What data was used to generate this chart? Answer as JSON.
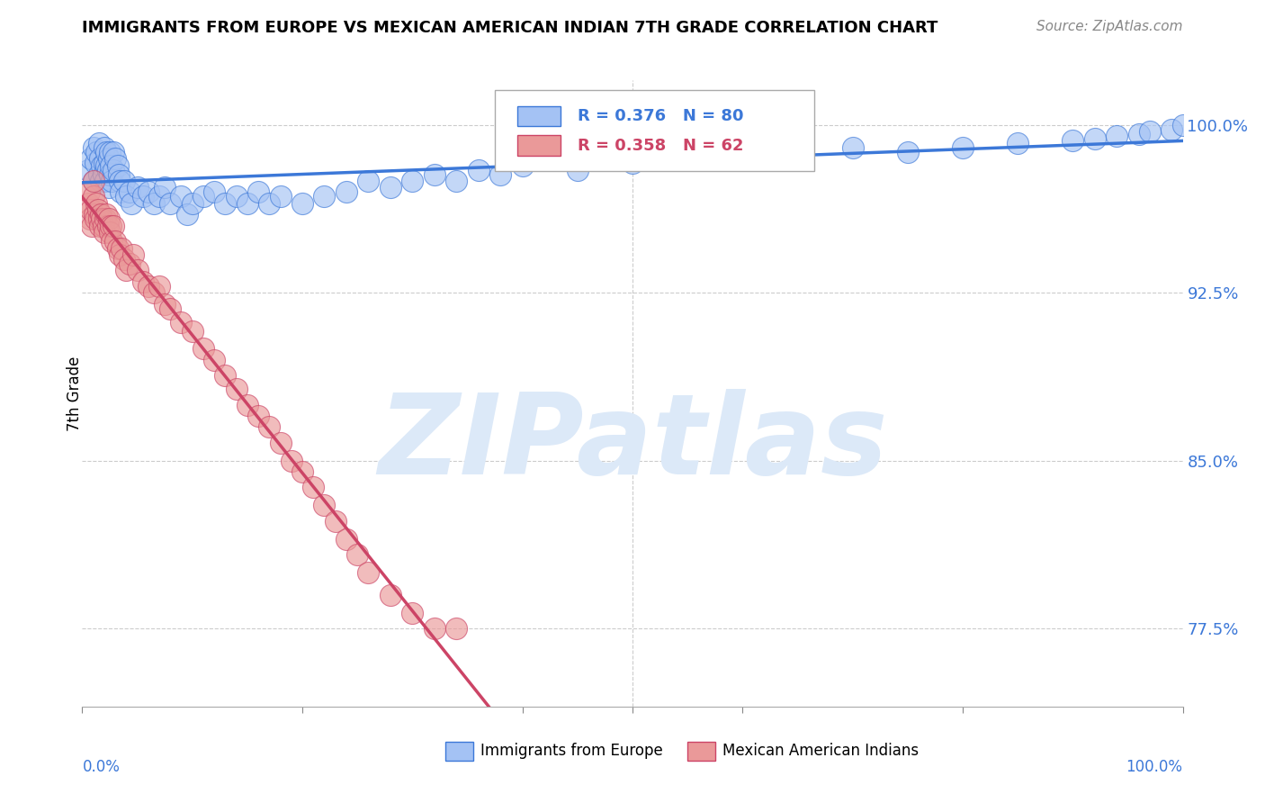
{
  "title": "IMMIGRANTS FROM EUROPE VS MEXICAN AMERICAN INDIAN 7TH GRADE CORRELATION CHART",
  "source": "Source: ZipAtlas.com",
  "ylabel": "7th Grade",
  "ytick_vals": [
    0.775,
    0.85,
    0.925,
    1.0
  ],
  "ytick_labels": [
    "77.5%",
    "85.0%",
    "92.5%",
    "100.0%"
  ],
  "xlim": [
    0.0,
    1.0
  ],
  "ylim": [
    0.74,
    1.02
  ],
  "legend_blue_label": "Immigrants from Europe",
  "legend_pink_label": "Mexican American Indians",
  "r_blue": 0.376,
  "n_blue": 80,
  "r_pink": 0.358,
  "n_pink": 62,
  "blue_color": "#a4c2f4",
  "pink_color": "#ea9999",
  "trendline_blue": "#3c78d8",
  "trendline_pink": "#cc4466",
  "watermark_color": "#dce9f8",
  "blue_x": [
    0.005,
    0.008,
    0.01,
    0.01,
    0.012,
    0.013,
    0.015,
    0.015,
    0.016,
    0.017,
    0.018,
    0.019,
    0.02,
    0.02,
    0.021,
    0.022,
    0.022,
    0.023,
    0.024,
    0.024,
    0.025,
    0.025,
    0.026,
    0.027,
    0.028,
    0.028,
    0.03,
    0.032,
    0.033,
    0.034,
    0.035,
    0.038,
    0.04,
    0.043,
    0.045,
    0.05,
    0.055,
    0.06,
    0.065,
    0.07,
    0.075,
    0.08,
    0.09,
    0.095,
    0.1,
    0.11,
    0.12,
    0.13,
    0.14,
    0.15,
    0.16,
    0.17,
    0.18,
    0.2,
    0.22,
    0.24,
    0.26,
    0.28,
    0.3,
    0.32,
    0.34,
    0.36,
    0.38,
    0.4,
    0.45,
    0.5,
    0.55,
    0.6,
    0.65,
    0.7,
    0.75,
    0.8,
    0.85,
    0.9,
    0.92,
    0.94,
    0.96,
    0.97,
    0.99,
    1.0
  ],
  "blue_y": [
    0.98,
    0.985,
    0.975,
    0.99,
    0.983,
    0.988,
    0.978,
    0.992,
    0.985,
    0.975,
    0.982,
    0.978,
    0.983,
    0.99,
    0.975,
    0.982,
    0.988,
    0.98,
    0.985,
    0.972,
    0.978,
    0.988,
    0.982,
    0.975,
    0.988,
    0.98,
    0.985,
    0.982,
    0.978,
    0.975,
    0.97,
    0.975,
    0.968,
    0.97,
    0.965,
    0.972,
    0.968,
    0.97,
    0.965,
    0.968,
    0.972,
    0.965,
    0.968,
    0.96,
    0.965,
    0.968,
    0.97,
    0.965,
    0.968,
    0.965,
    0.97,
    0.965,
    0.968,
    0.965,
    0.968,
    0.97,
    0.975,
    0.972,
    0.975,
    0.978,
    0.975,
    0.98,
    0.978,
    0.982,
    0.98,
    0.983,
    0.985,
    0.988,
    0.985,
    0.99,
    0.988,
    0.99,
    0.992,
    0.993,
    0.994,
    0.995,
    0.996,
    0.997,
    0.998,
    1.0
  ],
  "pink_x": [
    0.005,
    0.006,
    0.007,
    0.008,
    0.009,
    0.01,
    0.01,
    0.011,
    0.012,
    0.013,
    0.014,
    0.015,
    0.016,
    0.017,
    0.018,
    0.019,
    0.02,
    0.021,
    0.022,
    0.023,
    0.024,
    0.025,
    0.026,
    0.027,
    0.028,
    0.03,
    0.032,
    0.034,
    0.036,
    0.038,
    0.04,
    0.043,
    0.046,
    0.05,
    0.055,
    0.06,
    0.065,
    0.07,
    0.075,
    0.08,
    0.09,
    0.1,
    0.11,
    0.12,
    0.13,
    0.14,
    0.15,
    0.16,
    0.17,
    0.18,
    0.19,
    0.2,
    0.21,
    0.22,
    0.23,
    0.24,
    0.25,
    0.26,
    0.28,
    0.3,
    0.32,
    0.34
  ],
  "pink_y": [
    0.965,
    0.97,
    0.958,
    0.962,
    0.955,
    0.968,
    0.975,
    0.96,
    0.958,
    0.965,
    0.962,
    0.958,
    0.955,
    0.96,
    0.958,
    0.955,
    0.952,
    0.958,
    0.96,
    0.955,
    0.958,
    0.952,
    0.955,
    0.948,
    0.955,
    0.948,
    0.945,
    0.942,
    0.945,
    0.94,
    0.935,
    0.938,
    0.942,
    0.935,
    0.93,
    0.928,
    0.925,
    0.928,
    0.92,
    0.918,
    0.912,
    0.908,
    0.9,
    0.895,
    0.888,
    0.882,
    0.875,
    0.87,
    0.865,
    0.858,
    0.85,
    0.845,
    0.838,
    0.83,
    0.823,
    0.815,
    0.808,
    0.8,
    0.79,
    0.782,
    0.775,
    0.775
  ]
}
